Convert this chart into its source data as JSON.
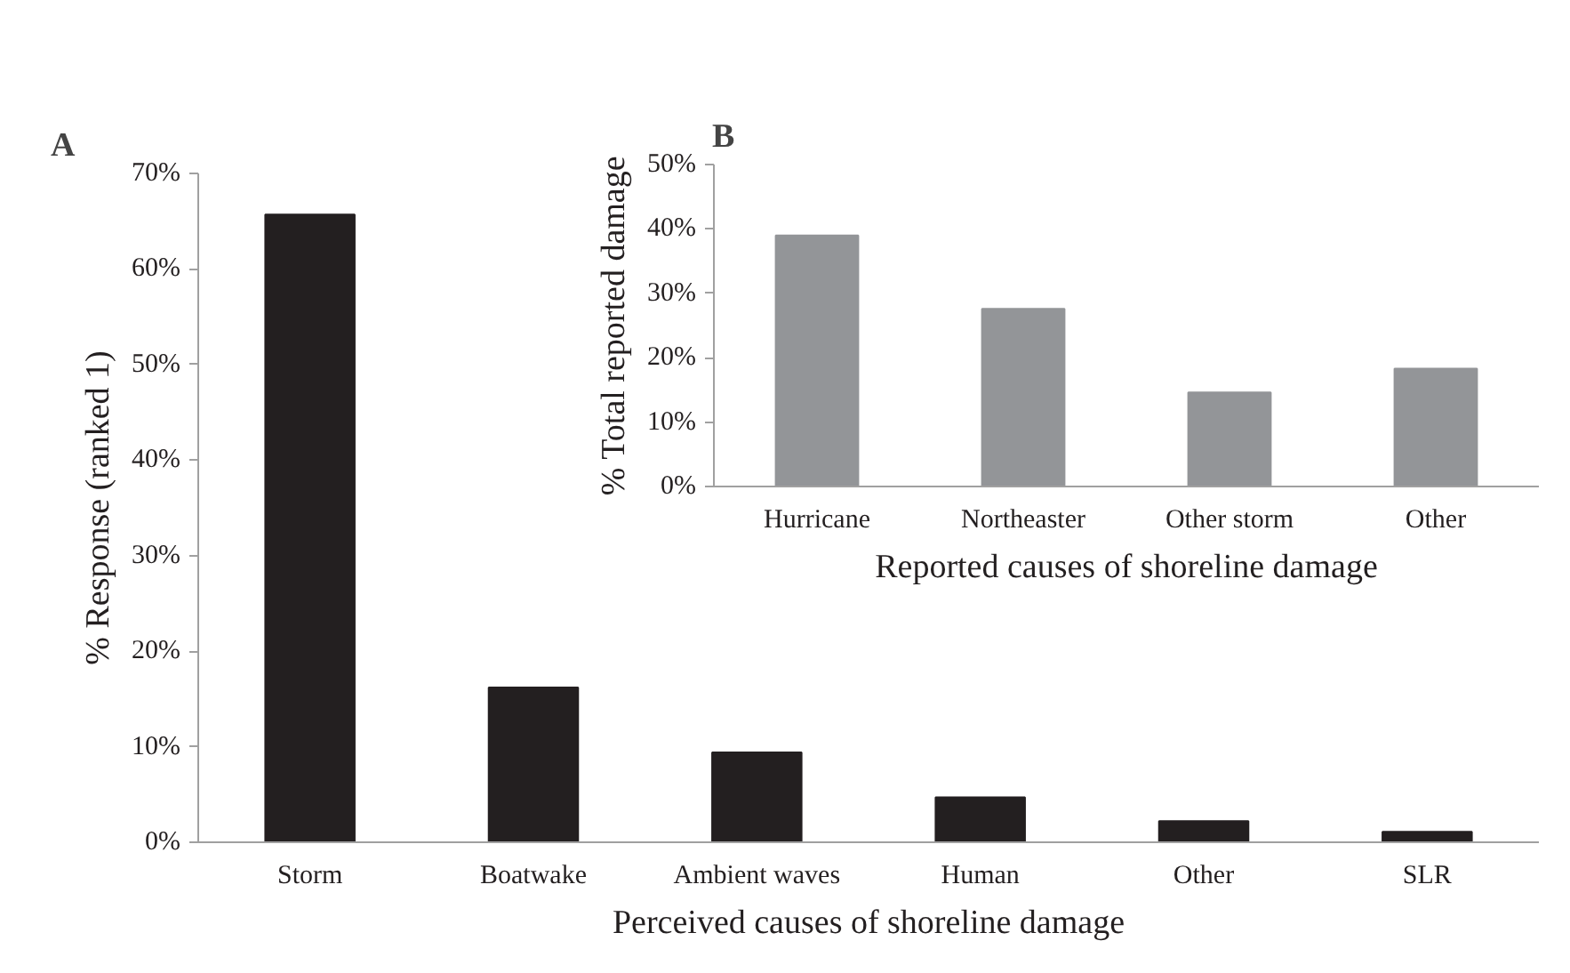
{
  "chart_data": [
    {
      "type": "bar",
      "title": "A",
      "xlabel": "Perceived causes of shoreline damage",
      "ylabel": "% Response (ranked 1)",
      "categories": [
        "Storm",
        "Boatwake",
        "Ambient waves",
        "Human",
        "Other",
        "SLR"
      ],
      "values": [
        65.7,
        16.2,
        9.4,
        4.7,
        2.2,
        1.1
      ],
      "color": "#231f20",
      "ylim": [
        0,
        70
      ],
      "yticks": [
        {
          "value": 0,
          "label": "0%"
        },
        {
          "value": 10,
          "label": "10%"
        },
        {
          "value": 20,
          "label": "20%"
        },
        {
          "value": 30,
          "label": "30%"
        },
        {
          "value": 40,
          "label": "40%"
        },
        {
          "value": 50,
          "label": "50%"
        },
        {
          "value": 60,
          "label": "60%"
        },
        {
          "value": 70,
          "label": "70%"
        }
      ],
      "grid": false
    },
    {
      "type": "bar",
      "title": "B",
      "xlabel": "Reported causes of shoreline damage",
      "ylabel": "% Total reported damage",
      "categories": [
        "Hurricane",
        "Northeaster",
        "Other storm",
        "Other"
      ],
      "values": [
        39.0,
        27.6,
        14.6,
        18.3
      ],
      "color": "#939598",
      "ylim": [
        0,
        50
      ],
      "yticks": [
        {
          "value": 0,
          "label": "0%"
        },
        {
          "value": 10,
          "label": "10%"
        },
        {
          "value": 20,
          "label": "20%"
        },
        {
          "value": 30,
          "label": "30%"
        },
        {
          "value": 40,
          "label": "40%"
        },
        {
          "value": 50,
          "label": "50%"
        }
      ],
      "grid": false
    }
  ]
}
